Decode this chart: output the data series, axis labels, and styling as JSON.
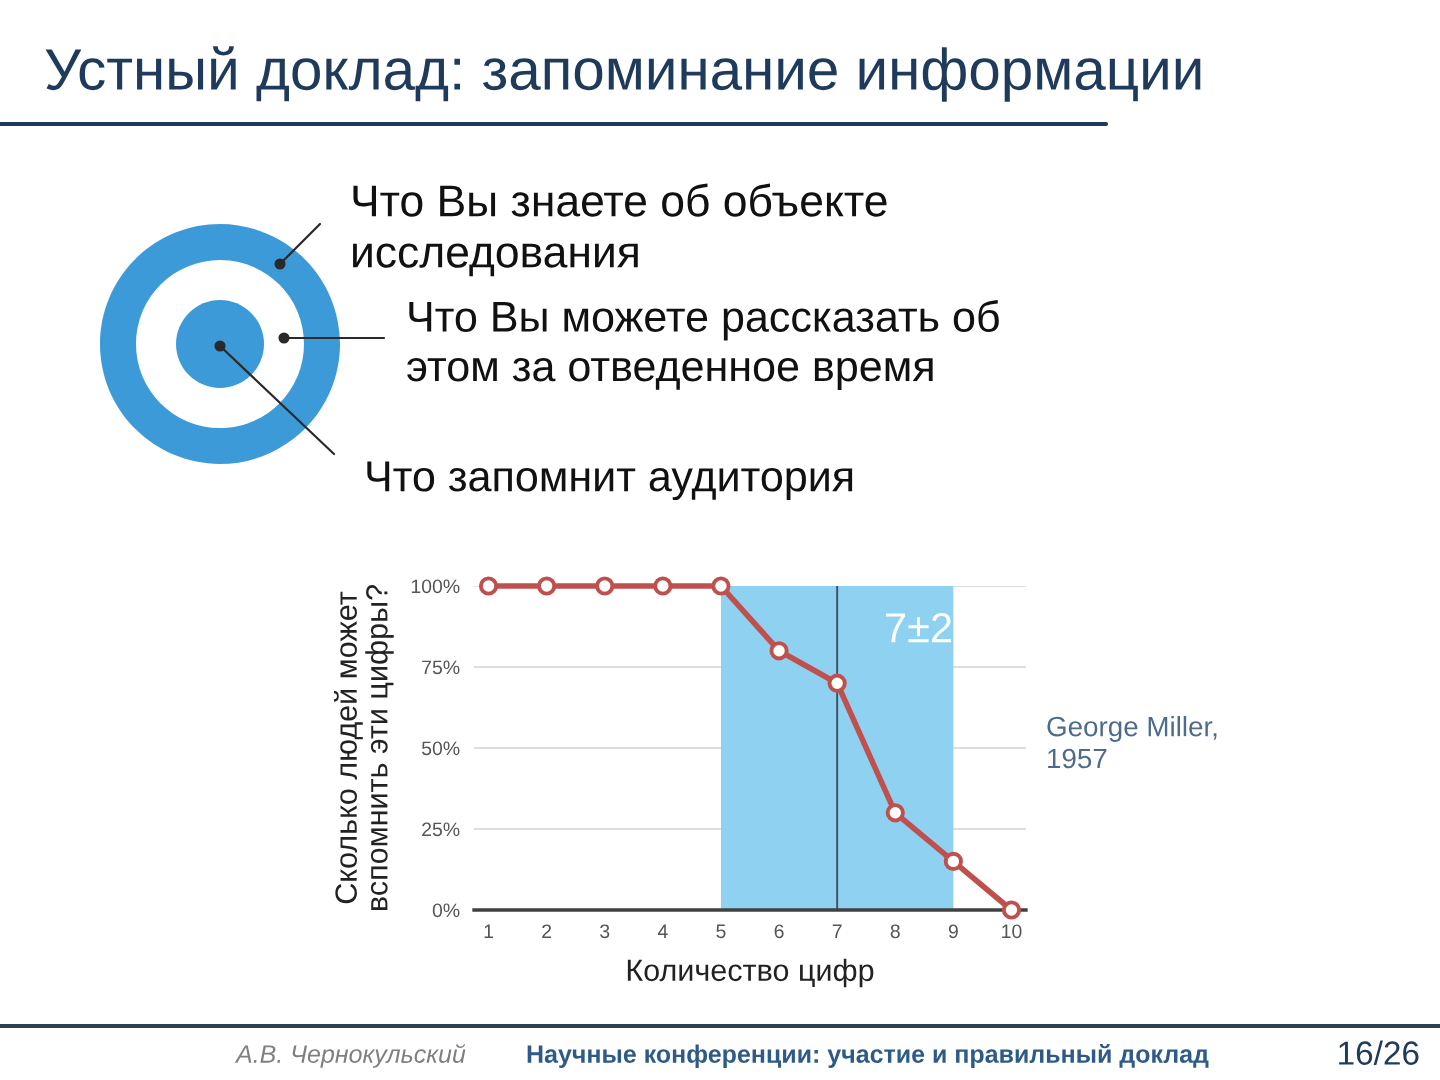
{
  "chart_data": {
    "type": "line",
    "title": "Устный доклад: запоминание информации",
    "xlabel": "Количество цифр",
    "ylabel": "Сколько людей может\nвспомнить эти цифры?",
    "x": [
      1,
      2,
      3,
      4,
      5,
      6,
      7,
      8,
      9,
      10
    ],
    "series": [
      {
        "color": "#c0504d",
        "values": [
          100,
          100,
          100,
          100,
          100,
          80,
          70,
          30,
          15,
          0
        ]
      }
    ],
    "xlim": [
      0.75,
      10.25
    ],
    "xticks": [
      1,
      2,
      3,
      4,
      5,
      6,
      7,
      8,
      9,
      10
    ],
    "ylim": [
      0,
      100
    ],
    "yticks": [
      {
        "value": 0,
        "label": "0%"
      },
      {
        "value": 25,
        "label": "25%"
      },
      {
        "value": 50,
        "label": "50%"
      },
      {
        "value": 75,
        "label": "75%"
      },
      {
        "value": 100,
        "label": "100%"
      }
    ],
    "grid": "y",
    "marker": "circle",
    "line_style": "solid",
    "ref_lines": [
      {
        "axis": "x",
        "value": 7,
        "color": "#3f5266"
      }
    ],
    "bands": [
      {
        "axis": "x",
        "from": 5,
        "to": 9,
        "label": "7±2",
        "color": "#8fd1f0"
      }
    ],
    "annotations": [
      "Что Вы знаете об объекте\nисследования",
      "Что Вы можете рассказать об\nэтом за отведенное время",
      "Что запомнит аудитория",
      "George Miller,\n1957",
      "А.В. Чернокульский",
      "Научные конференции: участие и правильный доклад",
      "16/26"
    ]
  }
}
